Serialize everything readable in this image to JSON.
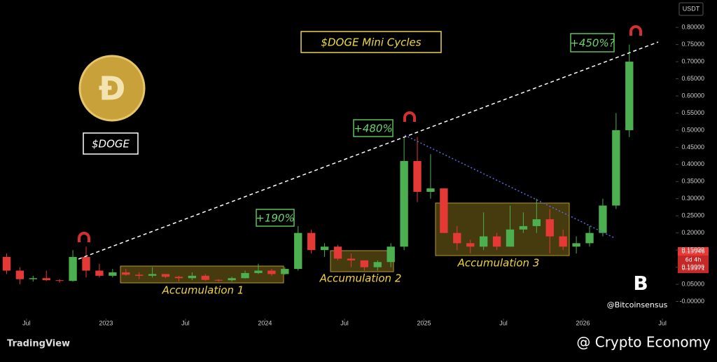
{
  "chart_data": {
    "type": "candlestick",
    "title": "$DOGE Mini Cycles",
    "logo_text": "$DOGE",
    "currency": "USDT",
    "x": [
      "2022-05",
      "2022-06",
      "2022-07",
      "2022-08",
      "2022-09",
      "2022-10",
      "2022-11",
      "2022-12",
      "2023-01",
      "2023-02",
      "2023-03",
      "2023-04",
      "2023-05",
      "2023-06",
      "2023-07",
      "2023-08",
      "2023-09",
      "2023-10",
      "2023-11",
      "2023-12",
      "2024-01",
      "2024-02",
      "2024-03",
      "2024-04",
      "2024-05",
      "2024-06",
      "2024-07",
      "2024-08",
      "2024-09",
      "2024-10",
      "2024-11",
      "2024-12",
      "2025-01",
      "2025-02",
      "2025-03",
      "2025-04",
      "2025-05",
      "2025-06",
      "2025-07",
      "2025-08",
      "2025-09",
      "2025-10",
      "2025-11",
      "2025-12",
      "2026-01",
      "2026-02",
      "2026-03",
      "2026-04"
    ],
    "open": [
      0.13,
      0.09,
      0.065,
      0.068,
      0.062,
      0.06,
      0.13,
      0.09,
      0.075,
      0.085,
      0.078,
      0.075,
      0.08,
      0.072,
      0.068,
      0.075,
      0.063,
      0.062,
      0.068,
      0.083,
      0.09,
      0.08,
      0.095,
      0.2,
      0.15,
      0.16,
      0.125,
      0.12,
      0.1,
      0.115,
      0.16,
      0.41,
      0.32,
      0.33,
      0.2,
      0.17,
      0.16,
      0.19,
      0.16,
      0.21,
      0.22,
      0.24,
      0.19,
      0.16,
      0.17,
      0.2,
      0.28,
      0.5
    ],
    "high": [
      0.14,
      0.1,
      0.075,
      0.09,
      0.065,
      0.15,
      0.16,
      0.11,
      0.095,
      0.095,
      0.085,
      0.1,
      0.08,
      0.075,
      0.085,
      0.08,
      0.065,
      0.072,
      0.09,
      0.11,
      0.095,
      0.1,
      0.22,
      0.21,
      0.17,
      0.165,
      0.14,
      0.12,
      0.12,
      0.17,
      0.48,
      0.48,
      0.43,
      0.33,
      0.22,
      0.18,
      0.26,
      0.2,
      0.28,
      0.26,
      0.3,
      0.27,
      0.21,
      0.19,
      0.22,
      0.3,
      0.55,
      0.75
    ],
    "low": [
      0.08,
      0.05,
      0.058,
      0.06,
      0.055,
      0.058,
      0.07,
      0.07,
      0.07,
      0.075,
      0.065,
      0.07,
      0.068,
      0.058,
      0.062,
      0.06,
      0.058,
      0.058,
      0.067,
      0.08,
      0.075,
      0.078,
      0.09,
      0.14,
      0.13,
      0.12,
      0.1,
      0.09,
      0.09,
      0.1,
      0.15,
      0.29,
      0.3,
      0.2,
      0.15,
      0.14,
      0.15,
      0.15,
      0.16,
      0.2,
      0.2,
      0.14,
      0.15,
      0.14,
      0.16,
      0.19,
      0.27,
      0.48
    ],
    "close": [
      0.09,
      0.065,
      0.068,
      0.062,
      0.06,
      0.13,
      0.09,
      0.075,
      0.085,
      0.078,
      0.075,
      0.08,
      0.072,
      0.068,
      0.075,
      0.063,
      0.062,
      0.068,
      0.083,
      0.09,
      0.08,
      0.095,
      0.2,
      0.15,
      0.16,
      0.125,
      0.12,
      0.1,
      0.115,
      0.16,
      0.41,
      0.32,
      0.33,
      0.2,
      0.17,
      0.16,
      0.19,
      0.16,
      0.21,
      0.22,
      0.24,
      0.19,
      0.16,
      0.17,
      0.2,
      0.28,
      0.5,
      0.7
    ],
    "up_color": "#4caf50",
    "down_color": "#e53935",
    "xlim": [
      "2022-05",
      "2026-08"
    ],
    "xticks": [
      {
        "value": "2022-07",
        "label": "Jul"
      },
      {
        "value": "2023-01",
        "label": "2023"
      },
      {
        "value": "2023-07",
        "label": "Jul"
      },
      {
        "value": "2024-01",
        "label": "2024"
      },
      {
        "value": "2024-07",
        "label": "Jul"
      },
      {
        "value": "2025-01",
        "label": "2025"
      },
      {
        "value": "2025-07",
        "label": "Jul"
      },
      {
        "value": "2026-01",
        "label": "2026"
      },
      {
        "value": "2026-07",
        "label": "Jul"
      }
    ],
    "ylim": [
      -0.05,
      0.88
    ],
    "yticks": [
      {
        "value": 0.8,
        "label": "0.80000"
      },
      {
        "value": 0.75,
        "label": "0.75000"
      },
      {
        "value": 0.7,
        "label": "0.70000"
      },
      {
        "value": 0.65,
        "label": "0.65000"
      },
      {
        "value": 0.6,
        "label": "0.60000"
      },
      {
        "value": 0.55,
        "label": "0.55000"
      },
      {
        "value": 0.5,
        "label": "0.50000"
      },
      {
        "value": 0.45,
        "label": "0.45000"
      },
      {
        "value": 0.4,
        "label": "0.40000"
      },
      {
        "value": 0.35,
        "label": "0.35000"
      },
      {
        "value": 0.3,
        "label": "0.30000"
      },
      {
        "value": 0.25,
        "label": "0.25000"
      },
      {
        "value": 0.2,
        "label": "0.20000"
      },
      {
        "value": 0.15,
        "label": "0.15000"
      },
      {
        "value": 0.1,
        "label": "0.10000"
      },
      {
        "value": 0.05,
        "label": "0.05000"
      },
      {
        "value": 0,
        "label": "-0.00000"
      }
    ],
    "price_tag": {
      "last": "0.13946",
      "countdown": "6d 4h",
      "prev": "0.13371"
    },
    "gains": [
      "+190%",
      "+480%",
      "+450%?"
    ],
    "zones": [
      "Accumulation 1",
      "Accumulation 2",
      "Accumulation 3"
    ],
    "watermark": "@Bitcoinsensus",
    "footer_left": "TradingView",
    "footer_right": "@ Crypto Economy"
  }
}
